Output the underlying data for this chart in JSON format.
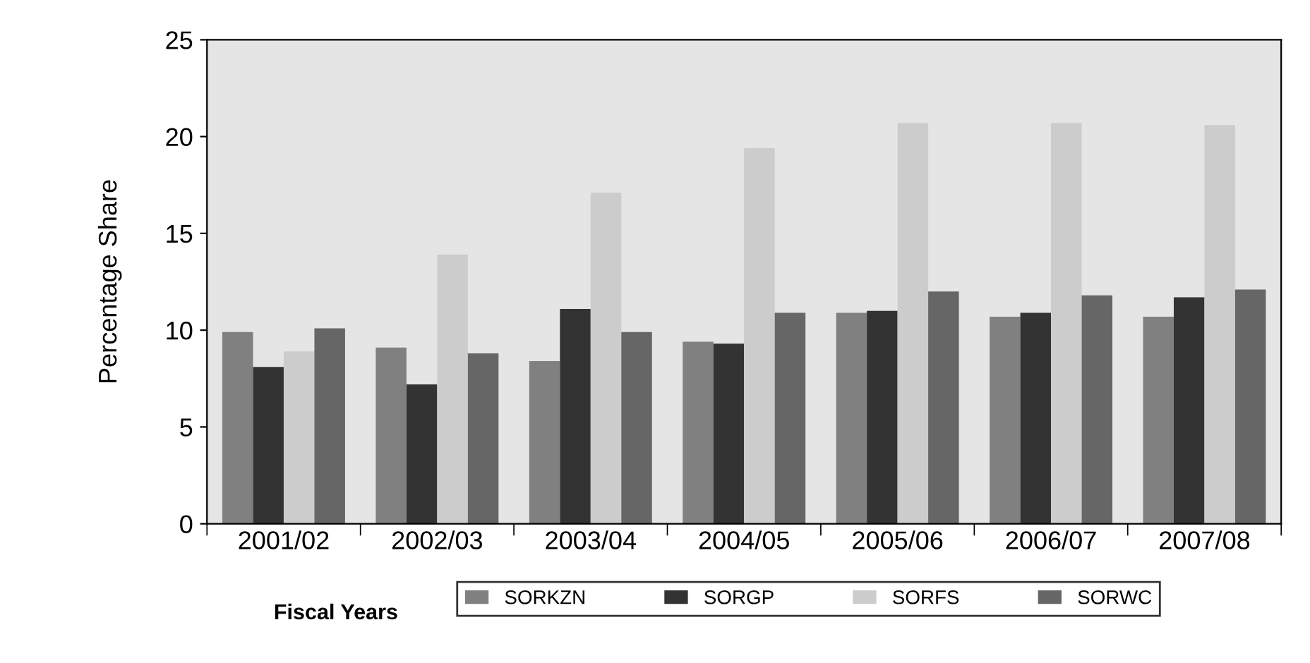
{
  "chart_data": {
    "type": "bar",
    "xlabel": "Fiscal Years",
    "ylabel": "Percentage Share",
    "categories": [
      "2001/02",
      "2002/03",
      "2003/04",
      "2004/05",
      "2005/06",
      "2006/07",
      "2007/08"
    ],
    "series": [
      {
        "name": "SORKZN",
        "color": "#808080",
        "values": [
          9.9,
          9.1,
          8.4,
          9.4,
          10.9,
          10.7,
          10.7
        ]
      },
      {
        "name": "SORGP",
        "color": "#333333",
        "values": [
          8.1,
          7.2,
          11.1,
          9.3,
          11.0,
          10.9,
          11.7
        ]
      },
      {
        "name": "SORFS",
        "color": "#cccccc",
        "values": [
          8.9,
          13.9,
          17.1,
          19.4,
          20.7,
          20.7,
          20.6
        ]
      },
      {
        "name": "SORWC",
        "color": "#666666",
        "values": [
          10.1,
          8.8,
          9.9,
          10.9,
          12.0,
          11.8,
          12.1
        ]
      }
    ],
    "ylim": [
      0,
      25
    ],
    "yticks": [
      0,
      5,
      10,
      15,
      20,
      25
    ],
    "grid": false,
    "legend": "bottom"
  }
}
